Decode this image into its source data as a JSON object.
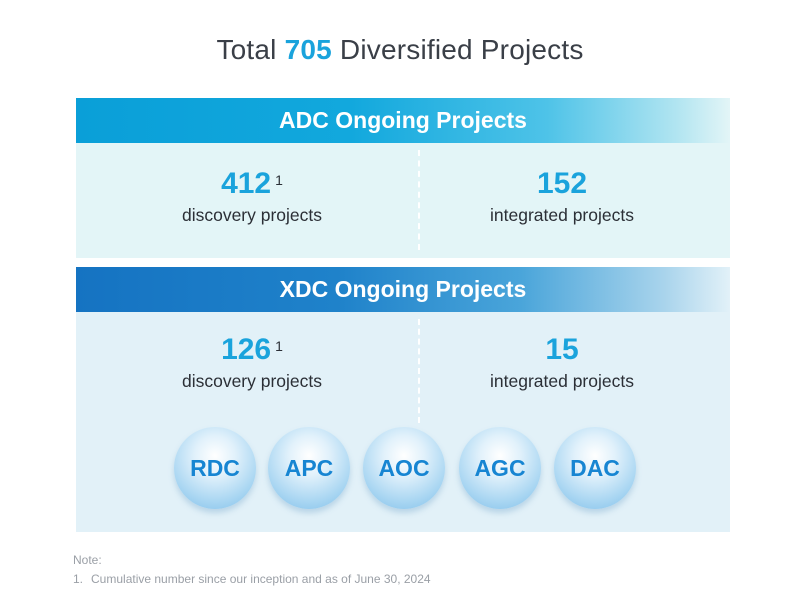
{
  "title": {
    "prefix": "Total",
    "number": "705",
    "suffix": "Diversified Projects"
  },
  "adc": {
    "header": "ADC Ongoing Projects",
    "left": {
      "value": "412",
      "footnote": "1",
      "label": "discovery projects"
    },
    "right": {
      "value": "152",
      "label": "integrated projects"
    }
  },
  "xdc": {
    "header": "XDC Ongoing Projects",
    "left": {
      "value": "126",
      "footnote": "1",
      "label": "discovery projects"
    },
    "right": {
      "value": "15",
      "label": "integrated projects"
    },
    "modalities": [
      "RDC",
      "APC",
      "AOC",
      "AGC",
      "DAC"
    ]
  },
  "note": {
    "title": "Note:",
    "items": [
      {
        "index": "1.",
        "text": "Cumulative number since our inception and as of June 30, 2024"
      }
    ]
  },
  "colors": {
    "accent": "#1aa3dc",
    "adc_band": "#0a9fd8",
    "xdc_band": "#1573c2",
    "bubble_text": "#1785d2"
  }
}
